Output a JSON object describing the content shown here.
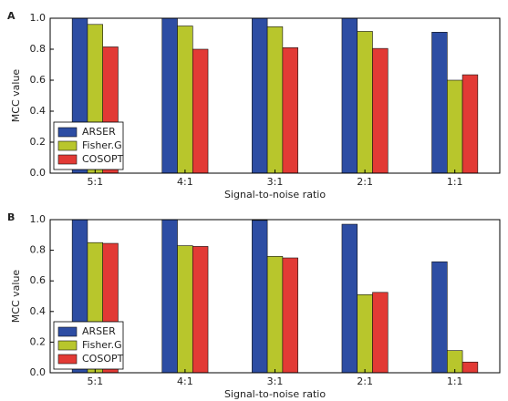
{
  "chart_data": [
    {
      "type": "bar",
      "label": "A",
      "xlabel": "Signal-to-noise ratio",
      "ylabel": "MCC value",
      "categories": [
        "5:1",
        "4:1",
        "3:1",
        "2:1",
        "1:1"
      ],
      "series": [
        {
          "name": "ARSER",
          "color": "#2d4da3",
          "values": [
            1.0,
            1.0,
            1.0,
            1.0,
            0.91
          ]
        },
        {
          "name": "Fisher.G",
          "color": "#b8c62c",
          "values": [
            0.96,
            0.95,
            0.945,
            0.915,
            0.6
          ]
        },
        {
          "name": "COSOPT",
          "color": "#e23a35",
          "values": [
            0.815,
            0.8,
            0.81,
            0.805,
            0.635
          ]
        }
      ],
      "ylim": [
        0,
        1
      ],
      "yticks": [
        {
          "value": 0,
          "label": "0.0"
        },
        {
          "value": 0.2,
          "label": "0.2"
        },
        {
          "value": 0.4,
          "label": "0.4"
        },
        {
          "value": 0.6,
          "label": "0.6"
        },
        {
          "value": 0.8,
          "label": "0.8"
        },
        {
          "value": 1,
          "label": "1.0"
        }
      ],
      "legend": "lower left"
    },
    {
      "type": "bar",
      "label": "B",
      "xlabel": "Signal-to-noise ratio",
      "ylabel": "MCC value",
      "categories": [
        "5:1",
        "4:1",
        "3:1",
        "2:1",
        "1:1"
      ],
      "series": [
        {
          "name": "ARSER",
          "color": "#2d4da3",
          "values": [
            1.0,
            1.0,
            0.995,
            0.97,
            0.725
          ]
        },
        {
          "name": "Fisher.G",
          "color": "#b8c62c",
          "values": [
            0.85,
            0.83,
            0.76,
            0.51,
            0.145
          ]
        },
        {
          "name": "COSOPT",
          "color": "#e23a35",
          "values": [
            0.845,
            0.825,
            0.75,
            0.525,
            0.07
          ]
        }
      ],
      "ylim": [
        0,
        1
      ],
      "yticks": [
        {
          "value": 0,
          "label": "0.0"
        },
        {
          "value": 0.2,
          "label": "0.2"
        },
        {
          "value": 0.4,
          "label": "0.4"
        },
        {
          "value": 0.6,
          "label": "0.6"
        },
        {
          "value": 0.8,
          "label": "0.8"
        },
        {
          "value": 1,
          "label": "1.0"
        }
      ],
      "legend": "lower left"
    }
  ]
}
